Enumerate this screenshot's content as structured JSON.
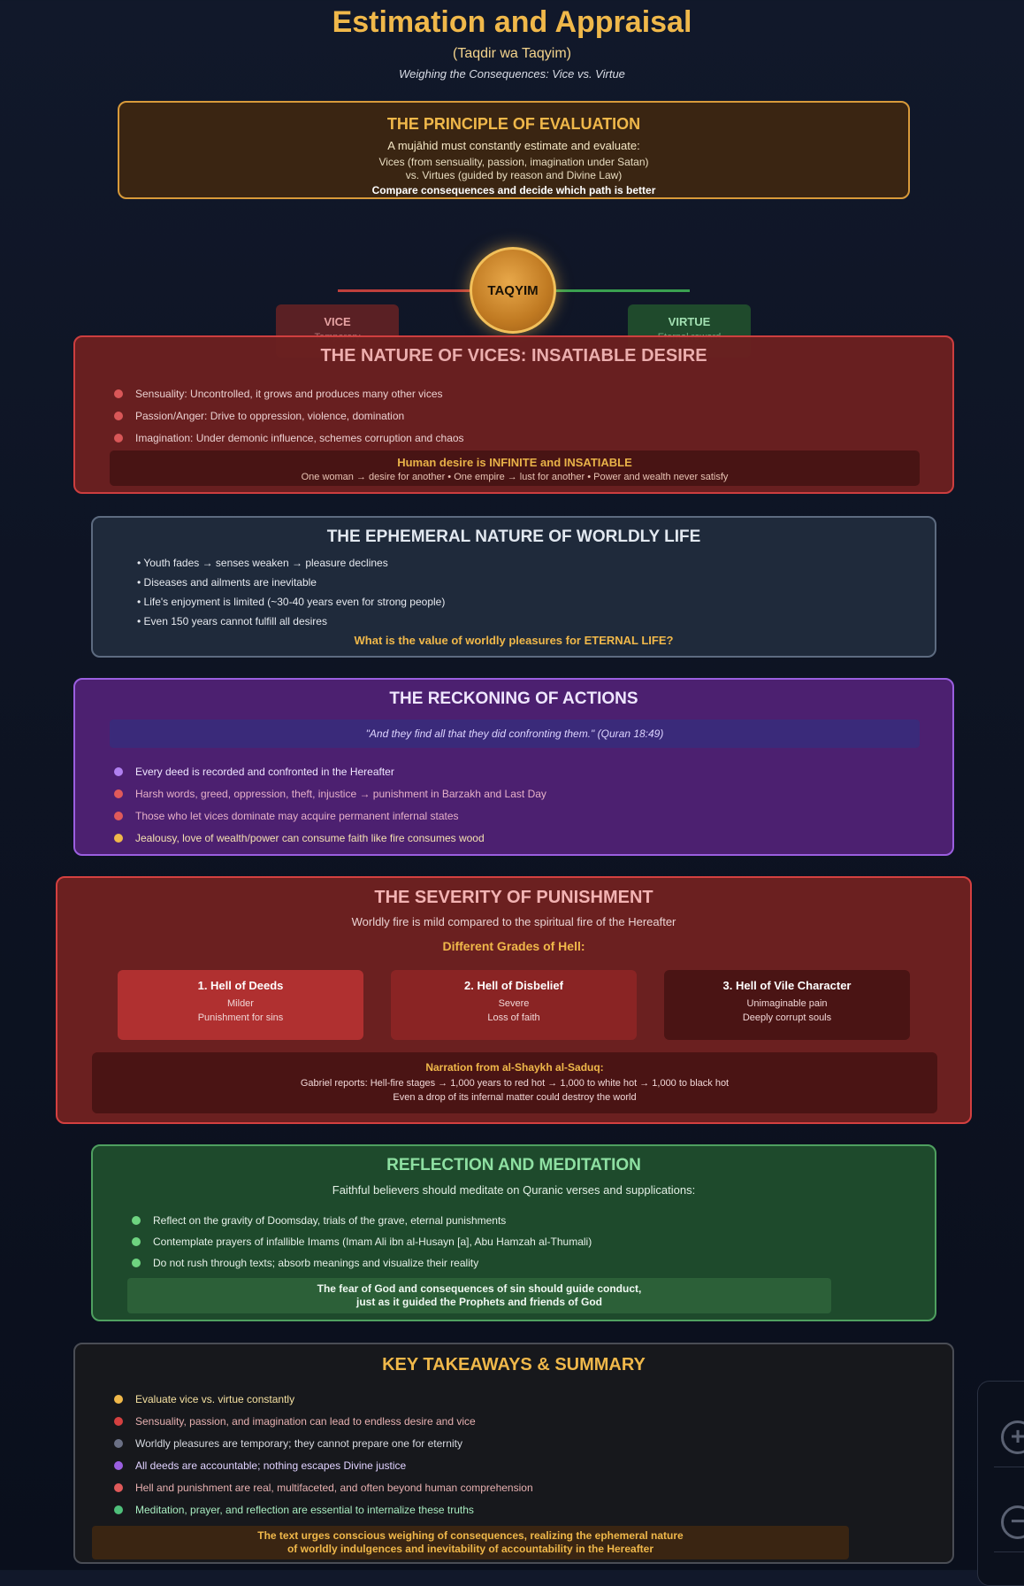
{
  "header": {
    "title": "Estimation and Appraisal",
    "subtitle": "(Taqdir wa Taqyim)",
    "tagline": "Weighing the Consequences: Vice vs. Virtue"
  },
  "principle": {
    "heading": "THE PRINCIPLE OF EVALUATION",
    "line1": "A mujāhid must constantly estimate and evaluate:",
    "line2": "Vices (from sensuality, passion, imagination under Satan)",
    "line3": "vs. Virtues (guided by reason and Divine Law)",
    "line4": "Compare consequences and decide which path is better"
  },
  "scale": {
    "center_label": "TAQYIM",
    "vice_label": "VICE",
    "vice_sub": "Temporary",
    "virtue_label": "VIRTUE",
    "virtue_sub": "Eternal reward",
    "colors": {
      "vice": "#d44040",
      "virtue": "#3aa050",
      "fulcrum": "#f2c05a"
    }
  },
  "vices": {
    "heading": "THE NATURE OF VICES: INSATIABLE DESIRE",
    "items": [
      "Sensuality: Uncontrolled, it grows and produces many other vices",
      "Passion/Anger: Drive to oppression, violence, domination",
      "Imagination: Under demonic influence, schemes corruption and chaos"
    ],
    "callout_title": "Human desire is INFINITE and INSATIABLE",
    "callout_text": "One woman → desire for another • One empire → lust for another • Power and wealth never satisfy"
  },
  "ephemeral": {
    "heading": "THE EPHEMERAL NATURE OF WORLDLY LIFE",
    "items": [
      "• Youth fades → senses weaken → pleasure declines",
      "• Diseases and ailments are inevitable",
      "• Life's enjoyment is limited (~30-40 years even for strong people)",
      "• Even 150 years cannot fulfill all desires"
    ],
    "question": "What is the value of worldly pleasures for ETERNAL LIFE?"
  },
  "reckoning": {
    "heading": "THE RECKONING OF ACTIONS",
    "quote": "\"And they find all that they did confronting them.\" (Quran 18:49)",
    "items": [
      {
        "text": "Every deed is recorded and confronted in the Hereafter",
        "color": "#b080f0",
        "text_color": "#efe6ff"
      },
      {
        "text": "Harsh words, greed, oppression, theft, injustice → punishment in Barzakh and Last Day",
        "color": "#e05a5a",
        "text_color": "#e6b0c8"
      },
      {
        "text": "Those who let vices dominate may acquire permanent infernal states",
        "color": "#e05a5a",
        "text_color": "#e6b0c8"
      },
      {
        "text": "Jealousy, love of wealth/power can consume faith like fire consumes wood",
        "color": "#f0b84a",
        "text_color": "#f4e0b0"
      }
    ]
  },
  "punishment": {
    "heading": "THE SEVERITY OF PUNISHMENT",
    "subheading": "Worldly fire is mild compared to the spiritual fire of the Hereafter",
    "grades_title": "Different Grades of Hell:",
    "grades": [
      {
        "title": "1. Hell of Deeds",
        "line1": "Milder",
        "line2": "Punishment for sins"
      },
      {
        "title": "2. Hell of Disbelief",
        "line1": "Severe",
        "line2": "Loss of faith"
      },
      {
        "title": "3. Hell of Vile Character",
        "line1": "Unimaginable pain",
        "line2": "Deeply corrupt souls"
      }
    ],
    "narration_title": "Narration from al-Shaykh al-Saduq:",
    "narration_line1": "Gabriel reports: Hell-fire stages → 1,000 years to red hot → 1,000 to white hot → 1,000 to black hot",
    "narration_line2": "Even a drop of its infernal matter could destroy the world"
  },
  "reflection": {
    "heading": "REFLECTION AND MEDITATION",
    "subheading": "Faithful believers should meditate on Quranic verses and supplications:",
    "items": [
      "Reflect on the gravity of Doomsday, trials of the grave, eternal punishments",
      "Contemplate prayers of infallible Imams (Imam Ali ibn al-Husayn [a], Abu Hamzah al-Thumali)",
      "Do not rush through texts; absorb meanings and visualize their reality"
    ],
    "callout_line1": "The fear of God and consequences of sin should guide conduct,",
    "callout_line2": "just as it guided the Prophets and friends of God"
  },
  "summary": {
    "heading": "KEY TAKEAWAYS & SUMMARY",
    "items": [
      {
        "text": "Evaluate vice vs. virtue constantly",
        "color": "#f0b84a",
        "text_color": "#f4e0a0"
      },
      {
        "text": "Sensuality, passion, and imagination can lead to endless desire and vice",
        "color": "#d44040",
        "text_color": "#e6b0b0"
      },
      {
        "text": "Worldly pleasures are temporary; they cannot prepare one for eternity",
        "color": "#6b7085",
        "text_color": "#d6d9e0"
      },
      {
        "text": "All deeds are accountable; nothing escapes Divine justice",
        "color": "#9b5fe0",
        "text_color": "#e0d2ff"
      },
      {
        "text": "Hell and punishment are real, multifaceted, and often beyond human comprehension",
        "color": "#e05a5a",
        "text_color": "#e6b0b0"
      },
      {
        "text": "Meditation, prayer, and reflection are essential to internalize these truths",
        "color": "#4fbf7a",
        "text_color": "#a8ecc0"
      }
    ],
    "final_line1": "The text urges conscious weighing of consequences, realizing the ephemeral nature",
    "final_line2": "of worldly indulgences and inevitability of accountability in the Hereafter"
  },
  "controls": {
    "zoom_in_icon": "zoom-in-icon",
    "zoom_out_icon": "zoom-out-icon"
  }
}
